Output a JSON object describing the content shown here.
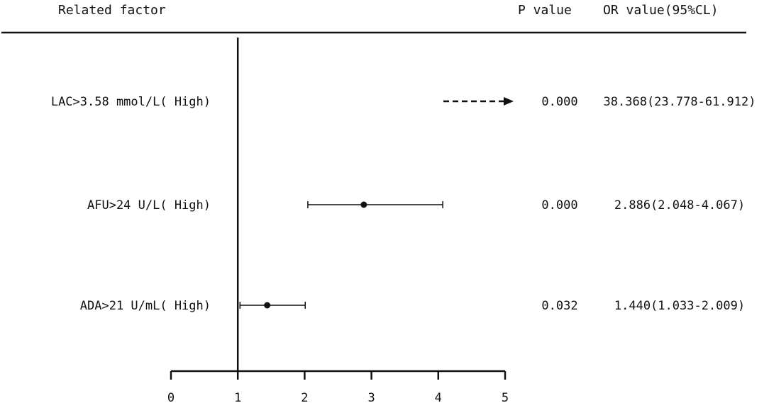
{
  "header": {
    "factor": "Related factor",
    "p": "P value",
    "or": "OR value(95%CL)"
  },
  "chart_data": {
    "type": "forest",
    "xlim": [
      0,
      5
    ],
    "ticks": [
      0,
      1,
      2,
      3,
      4,
      5
    ],
    "reference_line": 1,
    "rows": [
      {
        "label": "LAC>3.58 mmol/L( High)",
        "or": 38.368,
        "lo": 23.778,
        "hi": 61.912,
        "p": "0.000",
        "ci_text": "38.368(23.778-61.912)",
        "off_scale": true
      },
      {
        "label": "AFU>24 U/L( High)",
        "or": 2.886,
        "lo": 2.048,
        "hi": 4.067,
        "p": "0.000",
        "ci_text": "2.886(2.048-4.067)",
        "off_scale": false
      },
      {
        "label": "ADA>21 U/mL( High)",
        "or": 1.44,
        "lo": 1.033,
        "hi": 2.009,
        "p": "0.032",
        "ci_text": "1.440(1.033-2.009)",
        "off_scale": false
      }
    ]
  }
}
